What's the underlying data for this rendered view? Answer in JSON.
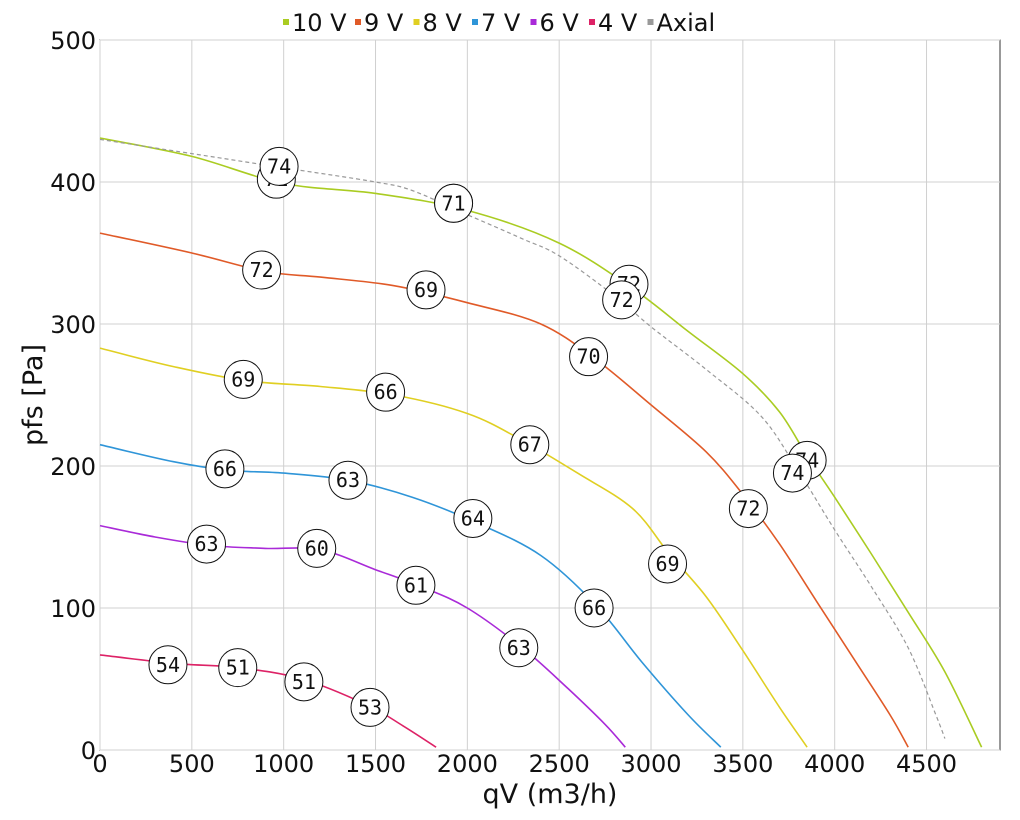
{
  "chart_data": {
    "type": "line",
    "xlabel": "qV (m3/h)",
    "ylabel": "pfs [Pa]",
    "xlim": [
      0,
      4900
    ],
    "ylim": [
      0,
      500
    ],
    "xticks": [
      0,
      500,
      1000,
      1500,
      2000,
      2500,
      3000,
      3500,
      4000,
      4500
    ],
    "yticks": [
      0,
      100,
      200,
      300,
      400,
      500
    ],
    "grid": true,
    "legend_position": "top",
    "series": [
      {
        "name": "10 V",
        "color": "#aacc22",
        "dashed": false,
        "points": [
          [
            0,
            431
          ],
          [
            500,
            418
          ],
          [
            1000,
            399
          ],
          [
            1500,
            392
          ],
          [
            2000,
            380
          ],
          [
            2500,
            357
          ],
          [
            2900,
            325
          ],
          [
            3200,
            295
          ],
          [
            3500,
            265
          ],
          [
            3700,
            238
          ],
          [
            3850,
            207
          ],
          [
            4000,
            178
          ],
          [
            4200,
            138
          ],
          [
            4400,
            97
          ],
          [
            4600,
            55
          ],
          [
            4800,
            2
          ]
        ],
        "labels": [
          {
            "text": "71",
            "x": 960,
            "y": 402
          },
          {
            "text": "71",
            "x": 1925,
            "y": 385
          },
          {
            "text": "72",
            "x": 2880,
            "y": 328
          },
          {
            "text": "74",
            "x": 3850,
            "y": 204
          }
        ]
      },
      {
        "name": "9 V",
        "color": "#e05a28",
        "dashed": false,
        "points": [
          [
            0,
            364
          ],
          [
            500,
            350
          ],
          [
            900,
            337
          ],
          [
            1200,
            333
          ],
          [
            1600,
            327
          ],
          [
            2000,
            315
          ],
          [
            2400,
            300
          ],
          [
            2700,
            275
          ],
          [
            3000,
            243
          ],
          [
            3300,
            210
          ],
          [
            3500,
            180
          ],
          [
            3700,
            145
          ],
          [
            3900,
            105
          ],
          [
            4100,
            65
          ],
          [
            4300,
            25
          ],
          [
            4400,
            2
          ]
        ],
        "labels": [
          {
            "text": "72",
            "x": 880,
            "y": 338
          },
          {
            "text": "69",
            "x": 1775,
            "y": 324
          },
          {
            "text": "70",
            "x": 2660,
            "y": 277
          },
          {
            "text": "72",
            "x": 3530,
            "y": 170
          }
        ]
      },
      {
        "name": "8 V",
        "color": "#e0cf22",
        "dashed": false,
        "points": [
          [
            0,
            283
          ],
          [
            400,
            270
          ],
          [
            800,
            260
          ],
          [
            1200,
            256
          ],
          [
            1600,
            250
          ],
          [
            2000,
            237
          ],
          [
            2300,
            218
          ],
          [
            2600,
            195
          ],
          [
            2900,
            170
          ],
          [
            3100,
            138
          ],
          [
            3300,
            108
          ],
          [
            3500,
            70
          ],
          [
            3700,
            30
          ],
          [
            3850,
            2
          ]
        ],
        "labels": [
          {
            "text": "69",
            "x": 780,
            "y": 261
          },
          {
            "text": "66",
            "x": 1555,
            "y": 252
          },
          {
            "text": "67",
            "x": 2340,
            "y": 215
          },
          {
            "text": "69",
            "x": 3090,
            "y": 131
          }
        ]
      },
      {
        "name": "7 V",
        "color": "#2f95d8",
        "dashed": false,
        "points": [
          [
            0,
            215
          ],
          [
            400,
            203
          ],
          [
            700,
            197
          ],
          [
            1000,
            195
          ],
          [
            1350,
            190
          ],
          [
            1700,
            178
          ],
          [
            2050,
            160
          ],
          [
            2400,
            137
          ],
          [
            2700,
            102
          ],
          [
            2950,
            62
          ],
          [
            3200,
            25
          ],
          [
            3380,
            2
          ]
        ],
        "labels": [
          {
            "text": "66",
            "x": 680,
            "y": 198
          },
          {
            "text": "63",
            "x": 1350,
            "y": 190
          },
          {
            "text": "64",
            "x": 2030,
            "y": 163
          },
          {
            "text": "66",
            "x": 2690,
            "y": 100
          }
        ]
      },
      {
        "name": "6 V",
        "color": "#a92ad8",
        "dashed": false,
        "points": [
          [
            0,
            158
          ],
          [
            300,
            150
          ],
          [
            600,
            144
          ],
          [
            900,
            142
          ],
          [
            1200,
            141
          ],
          [
            1500,
            127
          ],
          [
            1750,
            115
          ],
          [
            2000,
            100
          ],
          [
            2300,
            72
          ],
          [
            2550,
            43
          ],
          [
            2750,
            18
          ],
          [
            2860,
            2
          ]
        ],
        "labels": [
          {
            "text": "63",
            "x": 580,
            "y": 145
          },
          {
            "text": "60",
            "x": 1180,
            "y": 142
          },
          {
            "text": "61",
            "x": 1720,
            "y": 116
          },
          {
            "text": "63",
            "x": 2280,
            "y": 72
          }
        ]
      },
      {
        "name": "4 V",
        "color": "#dd2266",
        "dashed": false,
        "points": [
          [
            0,
            67
          ],
          [
            400,
            61
          ],
          [
            750,
            58
          ],
          [
            1100,
            50
          ],
          [
            1450,
            32
          ],
          [
            1650,
            17
          ],
          [
            1830,
            2
          ]
        ],
        "labels": [
          {
            "text": "54",
            "x": 370,
            "y": 60
          },
          {
            "text": "51",
            "x": 750,
            "y": 58
          },
          {
            "text": "51",
            "x": 1110,
            "y": 48
          },
          {
            "text": "53",
            "x": 1470,
            "y": 30
          }
        ]
      },
      {
        "name": "Axial",
        "color": "#999999",
        "dashed": true,
        "points": [
          [
            0,
            430
          ],
          [
            500,
            420
          ],
          [
            1000,
            410
          ],
          [
            1500,
            400
          ],
          [
            1700,
            394
          ],
          [
            2000,
            377
          ],
          [
            2300,
            360
          ],
          [
            2500,
            348
          ],
          [
            2800,
            320
          ],
          [
            3000,
            298
          ],
          [
            3300,
            268
          ],
          [
            3600,
            235
          ],
          [
            3800,
            197
          ],
          [
            4000,
            155
          ],
          [
            4200,
            115
          ],
          [
            4400,
            72
          ],
          [
            4550,
            25
          ],
          [
            4600,
            8
          ]
        ],
        "labels": [
          {
            "text": "74",
            "x": 975,
            "y": 411
          },
          {
            "text": "71",
            "x": 1925,
            "y": 385
          },
          {
            "text": "72",
            "x": 2840,
            "y": 317
          },
          {
            "text": "74",
            "x": 3770,
            "y": 195
          }
        ]
      }
    ]
  }
}
